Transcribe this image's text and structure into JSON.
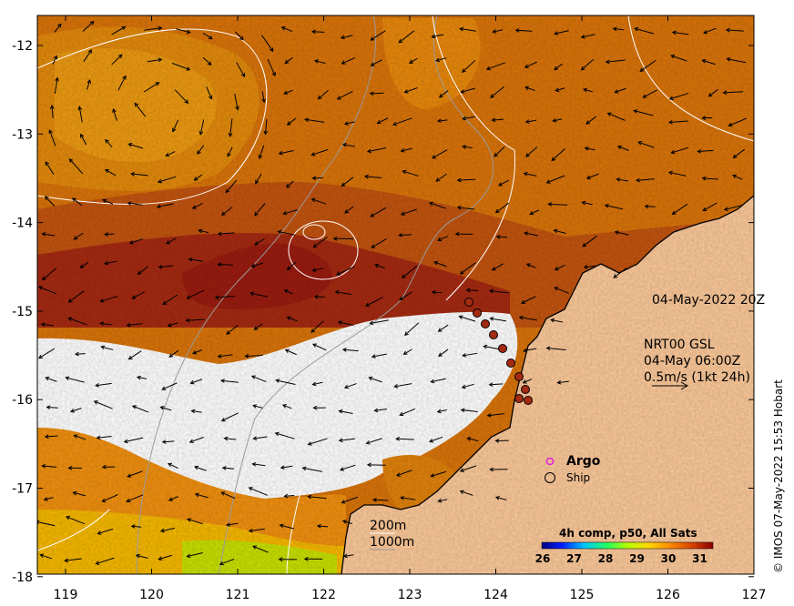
{
  "map": {
    "x_ticks": [
      "119",
      "120",
      "121",
      "122",
      "123",
      "124",
      "125",
      "126",
      "127"
    ],
    "y_ticks": [
      "-12",
      "-13",
      "-14",
      "-15",
      "-16",
      "-17",
      "-18"
    ],
    "timestamp": "04-May-2022 20Z",
    "current_source": "NRT00 GSL",
    "current_time": "04-May 06:00Z",
    "current_scale": "0.5m/s (1kt 24h)",
    "legend": {
      "argo": "Argo",
      "ship": "Ship"
    },
    "contours": {
      "shallow": "200m",
      "deep": "1000m"
    },
    "colorbar": {
      "title": "4h comp, p50, All Sats",
      "ticks": [
        "26",
        "27",
        "28",
        "29",
        "30",
        "31"
      ],
      "colors": [
        "#00007f",
        "#0020ff",
        "#00c8ff",
        "#20ff60",
        "#b4ff00",
        "#ffd800",
        "#ff8a00",
        "#d84000",
        "#8c0000"
      ]
    },
    "credit": "© IMOS 07-May-2022 15:53 Hobart",
    "palette": {
      "land": "#fcc99a",
      "warm": "#d9740a",
      "warmer": "#c25410",
      "hot": "#a52a12",
      "cool": "#f09010",
      "cooler": "#f6b800",
      "cold": "#c8e000",
      "cloud": "#ffffff"
    }
  }
}
